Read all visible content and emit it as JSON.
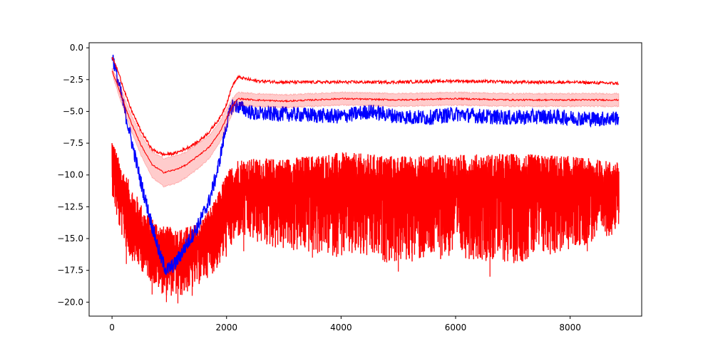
{
  "chart_data": {
    "type": "line",
    "title": "",
    "xlabel": "",
    "ylabel": "",
    "xlim": [
      -400,
      9250
    ],
    "ylim": [
      -21.1,
      0.4
    ],
    "grid": false,
    "legend": "none",
    "x_ticks": [
      {
        "value": 0,
        "label": "0"
      },
      {
        "value": 2000,
        "label": "2000"
      },
      {
        "value": 4000,
        "label": "4000"
      },
      {
        "value": 6000,
        "label": "6000"
      },
      {
        "value": 8000,
        "label": "8000"
      }
    ],
    "y_ticks": [
      {
        "value": 0,
        "label": "0.0"
      },
      {
        "value": -2.5,
        "label": "−2.5"
      },
      {
        "value": -5,
        "label": "−5.0"
      },
      {
        "value": -7.5,
        "label": "−7.5"
      },
      {
        "value": -10,
        "label": "−10.0"
      },
      {
        "value": -12.5,
        "label": "−12.5"
      },
      {
        "value": -15,
        "label": "−15.0"
      },
      {
        "value": -17.5,
        "label": "−17.5"
      },
      {
        "value": -20,
        "label": "−20.0"
      }
    ],
    "series": [
      {
        "color": "#ff0000",
        "style": "noisy-band",
        "x": [
          0,
          100,
          300,
          600,
          900,
          1200,
          1500,
          1800,
          2000,
          2200,
          3000,
          4000,
          5000,
          6000,
          7000,
          8000,
          8850
        ],
        "center": [
          -9.5,
          -11.0,
          -13.5,
          -15.5,
          -16.5,
          -16.5,
          -15.8,
          -14.3,
          -12.5,
          -11.0,
          -11.0,
          -11.0,
          -11.0,
          -11.0,
          -11.0,
          -11.0,
          -11.0
        ],
        "upper": [
          -6.8,
          -8.5,
          -10.5,
          -13.0,
          -14.0,
          -14.2,
          -13.8,
          -12.0,
          -9.8,
          -8.7,
          -8.7,
          -8.2,
          -8.5,
          -8.4,
          -8.3,
          -8.5,
          -9.0
        ],
        "lower": [
          -11.5,
          -14.0,
          -16.5,
          -18.0,
          -19.5,
          -19.6,
          -18.7,
          -17.6,
          -16.5,
          -15.0,
          -16.0,
          -16.5,
          -17.0,
          -16.5,
          -17.0,
          -16.0,
          -14.5
        ],
        "spikes": [
          [
            250,
            -17.0
          ],
          [
            700,
            -19.4
          ],
          [
            950,
            -20.0
          ],
          [
            1150,
            -20.1
          ],
          [
            1400,
            -19.5
          ],
          [
            2300,
            -16.0
          ],
          [
            3500,
            -16.5
          ],
          [
            5000,
            -17.6
          ],
          [
            6600,
            -18.0
          ],
          [
            7200,
            -16.0
          ],
          [
            8300,
            -16.0
          ]
        ]
      },
      {
        "color": "#0000ff",
        "style": "noisy-line",
        "x": [
          0,
          100,
          300,
          500,
          700,
          850,
          950,
          1100,
          1300,
          1500,
          1700,
          1850,
          2000,
          2100,
          2200,
          2500,
          3000,
          3500,
          4000,
          4500,
          5000,
          5500,
          6000,
          6500,
          7000,
          7500,
          8000,
          8500,
          8850
        ],
        "y": [
          -0.5,
          -2.5,
          -6.5,
          -10.5,
          -14.0,
          -16.5,
          -17.5,
          -17.0,
          -15.5,
          -14.0,
          -12.0,
          -9.5,
          -6.0,
          -4.5,
          -4.6,
          -5.2,
          -5.2,
          -5.3,
          -5.4,
          -5.0,
          -5.4,
          -5.5,
          -5.2,
          -5.4,
          -5.5,
          -5.4,
          -5.5,
          -5.6,
          -5.5
        ],
        "amp": 0.6
      },
      {
        "color": "#ff0000",
        "style": "mean-with-band",
        "band_color": "#ff0000",
        "x": [
          0,
          100,
          300,
          500,
          700,
          900,
          1100,
          1300,
          1500,
          1700,
          1900,
          2000,
          2100,
          2200,
          2500,
          3000,
          4000,
          5000,
          6000,
          7000,
          8000,
          8850
        ],
        "y": [
          -1.8,
          -3.0,
          -5.5,
          -7.6,
          -9.2,
          -9.8,
          -9.6,
          -9.2,
          -8.5,
          -7.8,
          -6.5,
          -5.5,
          -4.6,
          -4.0,
          -4.1,
          -4.2,
          -4.0,
          -4.1,
          -4.0,
          -4.1,
          -4.1,
          -4.1
        ],
        "band": [
          0.2,
          0.5,
          0.6,
          0.8,
          1.0,
          1.1,
          1.1,
          1.0,
          1.0,
          0.9,
          0.8,
          0.7,
          0.6,
          0.5,
          0.5,
          0.5,
          0.5,
          0.5,
          0.5,
          0.5,
          0.5,
          0.5
        ]
      },
      {
        "color": "#ff0000",
        "style": "noisy-line",
        "x": [
          0,
          100,
          300,
          500,
          700,
          900,
          1100,
          1300,
          1500,
          1700,
          1900,
          2000,
          2100,
          2200,
          2500,
          3000,
          4000,
          5000,
          6000,
          7000,
          8000,
          8850
        ],
        "y": [
          -0.7,
          -1.8,
          -4.5,
          -6.5,
          -8.0,
          -8.4,
          -8.3,
          -7.9,
          -7.4,
          -6.6,
          -5.4,
          -4.4,
          -3.0,
          -2.3,
          -2.6,
          -2.7,
          -2.7,
          -2.7,
          -2.6,
          -2.7,
          -2.7,
          -2.8
        ],
        "amp": 0.12
      }
    ]
  }
}
